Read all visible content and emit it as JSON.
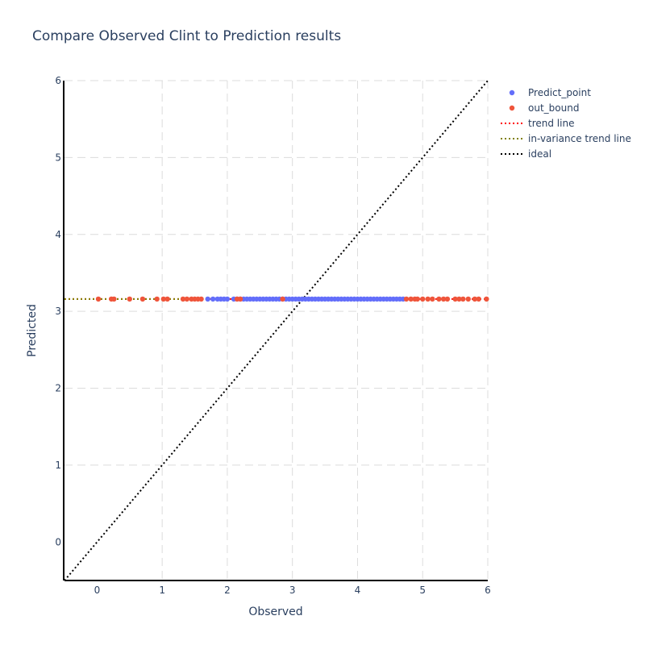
{
  "chart_data": {
    "type": "scatter",
    "title": "Compare Observed Clint to Prediction results",
    "xlabel": "Observed",
    "ylabel": "Predicted",
    "xlim": [
      -0.5,
      6
    ],
    "ylim": [
      -0.5,
      6
    ],
    "x_ticks": [
      "0",
      "1",
      "2",
      "3",
      "4",
      "5",
      "6"
    ],
    "y_ticks": [
      "0",
      "1",
      "2",
      "3",
      "4",
      "5",
      "6"
    ],
    "grid": true,
    "legend_position": "top-right",
    "series": [
      {
        "name": "Predict_point",
        "kind": "markers",
        "color": "#636efa",
        "x": [
          1.7,
          1.78,
          1.85,
          1.9,
          1.95,
          2.0,
          2.1,
          2.15,
          2.2,
          2.25,
          2.3,
          2.35,
          2.4,
          2.45,
          2.5,
          2.55,
          2.6,
          2.65,
          2.7,
          2.75,
          2.8,
          2.85,
          2.9,
          2.95,
          3.0,
          3.05,
          3.1,
          3.15,
          3.2,
          3.25,
          3.3,
          3.35,
          3.4,
          3.45,
          3.5,
          3.55,
          3.6,
          3.65,
          3.7,
          3.75,
          3.8,
          3.85,
          3.9,
          3.95,
          4.0,
          4.05,
          4.1,
          4.15,
          4.2,
          4.25,
          4.3,
          4.35,
          4.4,
          4.45,
          4.5,
          4.55,
          4.6,
          4.65,
          4.7
        ],
        "y": [
          3.16,
          3.16,
          3.16,
          3.16,
          3.16,
          3.16,
          3.16,
          3.16,
          3.16,
          3.16,
          3.16,
          3.16,
          3.16,
          3.16,
          3.16,
          3.16,
          3.16,
          3.16,
          3.16,
          3.16,
          3.16,
          3.16,
          3.16,
          3.16,
          3.16,
          3.16,
          3.16,
          3.16,
          3.16,
          3.16,
          3.16,
          3.16,
          3.16,
          3.16,
          3.16,
          3.16,
          3.16,
          3.16,
          3.16,
          3.16,
          3.16,
          3.16,
          3.16,
          3.16,
          3.16,
          3.16,
          3.16,
          3.16,
          3.16,
          3.16,
          3.16,
          3.16,
          3.16,
          3.16,
          3.16,
          3.16,
          3.16,
          3.16,
          3.16
        ]
      },
      {
        "name": "out_bound",
        "kind": "markers",
        "color": "#ef553b",
        "x": [
          0.02,
          0.22,
          0.26,
          0.5,
          0.7,
          0.92,
          1.02,
          1.08,
          1.32,
          1.38,
          1.45,
          1.5,
          1.55,
          1.6,
          2.15,
          2.2,
          2.85,
          4.75,
          4.82,
          4.88,
          4.92,
          5.0,
          5.08,
          5.15,
          5.25,
          5.32,
          5.38,
          5.5,
          5.56,
          5.62,
          5.7,
          5.8,
          5.86,
          5.98
        ],
        "y": [
          3.16,
          3.16,
          3.16,
          3.16,
          3.16,
          3.16,
          3.16,
          3.16,
          3.16,
          3.16,
          3.16,
          3.16,
          3.16,
          3.16,
          3.16,
          3.16,
          3.16,
          3.16,
          3.16,
          3.16,
          3.16,
          3.16,
          3.16,
          3.16,
          3.16,
          3.16,
          3.16,
          3.16,
          3.16,
          3.16,
          3.16,
          3.16,
          3.16,
          3.16
        ]
      },
      {
        "name": "trend line",
        "kind": "line",
        "dash": "dot",
        "color": "#ff0000",
        "x": [
          -0.5,
          6
        ],
        "y": [
          3.16,
          3.16
        ]
      },
      {
        "name": "in-variance trend line",
        "kind": "line",
        "dash": "dot",
        "color": "#808000",
        "x": [
          -0.5,
          1.3
        ],
        "y": [
          3.16,
          3.16
        ]
      },
      {
        "name": "ideal",
        "kind": "line",
        "dash": "dot",
        "color": "#000000",
        "x": [
          -0.5,
          6
        ],
        "y": [
          -0.5,
          6
        ]
      }
    ]
  }
}
